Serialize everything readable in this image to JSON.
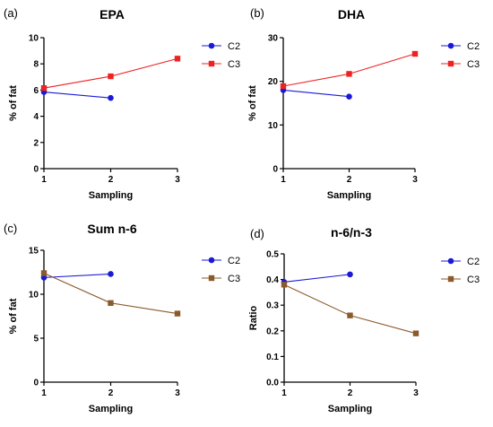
{
  "chart_data": [
    {
      "type": "line",
      "panel_label": "(a)",
      "title": "EPA",
      "xlabel": "Sampling",
      "ylabel": "% of fat",
      "x_ticks": [
        "1",
        "2",
        "3"
      ],
      "y_ticks": [
        "0",
        "2",
        "4",
        "6",
        "8",
        "10"
      ],
      "ylim": [
        0,
        10
      ],
      "grid": false,
      "legend_position": "right",
      "series": [
        {
          "name": "C2",
          "color": "#1a1ad6",
          "marker": "circle",
          "x": [
            1,
            2
          ],
          "y": [
            5.85,
            5.4
          ]
        },
        {
          "name": "C3",
          "color": "#ee2222",
          "marker": "square",
          "x": [
            1,
            2,
            3
          ],
          "y": [
            6.15,
            7.05,
            8.4
          ]
        }
      ]
    },
    {
      "type": "line",
      "panel_label": "(b)",
      "title": "DHA",
      "xlabel": "Sampling",
      "ylabel": "% of fat",
      "x_ticks": [
        "1",
        "2",
        "3"
      ],
      "y_ticks": [
        "0",
        "10",
        "20",
        "30"
      ],
      "ylim": [
        0,
        30
      ],
      "grid": false,
      "legend_position": "right",
      "series": [
        {
          "name": "C2",
          "color": "#1a1ad6",
          "marker": "circle",
          "x": [
            1,
            2
          ],
          "y": [
            18.0,
            16.5
          ]
        },
        {
          "name": "C3",
          "color": "#ee2222",
          "marker": "square",
          "x": [
            1,
            2,
            3
          ],
          "y": [
            18.9,
            21.7,
            26.3
          ]
        }
      ]
    },
    {
      "type": "line",
      "panel_label": "(c)",
      "title": "Sum n-6",
      "xlabel": "Sampling",
      "ylabel": "% of fat",
      "x_ticks": [
        "1",
        "2",
        "3"
      ],
      "y_ticks": [
        "0",
        "5",
        "10",
        "15"
      ],
      "ylim": [
        0,
        15
      ],
      "grid": false,
      "legend_position": "right",
      "series": [
        {
          "name": "C2",
          "color": "#1a1ad6",
          "marker": "circle",
          "x": [
            1,
            2
          ],
          "y": [
            11.9,
            12.3
          ]
        },
        {
          "name": "C3",
          "color": "#8b5a2b",
          "marker": "square",
          "x": [
            1,
            2,
            3
          ],
          "y": [
            12.4,
            9.0,
            7.8
          ]
        }
      ]
    },
    {
      "type": "line",
      "panel_label": "(d)",
      "title": "n-6/n-3",
      "xlabel": "Sampling",
      "ylabel": "Ratio",
      "x_ticks": [
        "1",
        "2",
        "3"
      ],
      "y_ticks": [
        "0.0",
        "0.1",
        "0.2",
        "0.3",
        "0.4",
        "0.5"
      ],
      "ylim": [
        0,
        0.5
      ],
      "grid": false,
      "legend_position": "right",
      "series": [
        {
          "name": "C2",
          "color": "#1a1ad6",
          "marker": "circle",
          "x": [
            1,
            2
          ],
          "y": [
            0.39,
            0.42
          ]
        },
        {
          "name": "C3",
          "color": "#8b5a2b",
          "marker": "square",
          "x": [
            1,
            2,
            3
          ],
          "y": [
            0.38,
            0.26,
            0.19
          ]
        }
      ]
    }
  ]
}
